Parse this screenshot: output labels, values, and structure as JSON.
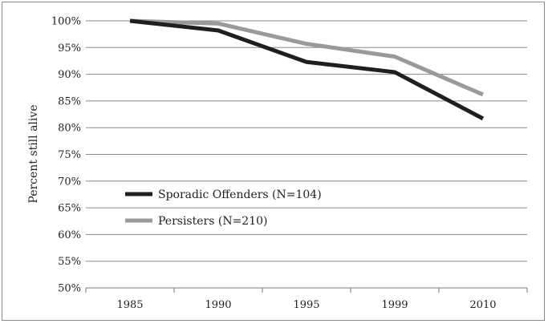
{
  "chart_data": {
    "type": "line",
    "title": "",
    "xlabel": "",
    "ylabel": "Percent still alive",
    "categories": [
      "1985",
      "1990",
      "1995",
      "1999",
      "2010"
    ],
    "ylim": [
      50,
      100
    ],
    "ytick_labels": [
      "50%",
      "55%",
      "60%",
      "65%",
      "70%",
      "75%",
      "80%",
      "85%",
      "90%",
      "95%",
      "100%"
    ],
    "ytick_values": [
      50,
      55,
      60,
      65,
      70,
      75,
      80,
      85,
      90,
      95,
      100
    ],
    "grid": true,
    "legend_position": "bottom-left inside",
    "series": [
      {
        "name": "Sporadic Offenders (N=104)",
        "values": [
          100,
          98.2,
          92.3,
          90.4,
          81.7
        ],
        "color": "#1f1f1f"
      },
      {
        "name": "Persisters (N=210)",
        "values": [
          100,
          99.5,
          95.7,
          93.3,
          86.2
        ],
        "color": "#9a9a9a"
      }
    ]
  }
}
